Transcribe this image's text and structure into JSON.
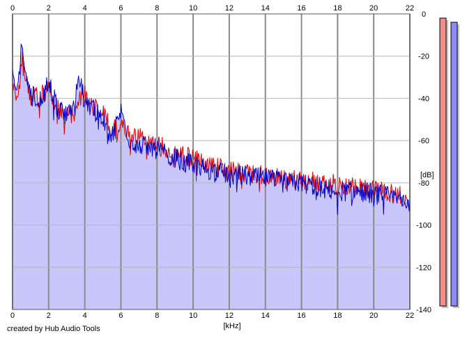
{
  "credit": "created by Hub Audio Tools",
  "chart_data": {
    "type": "area",
    "title": "",
    "xlabel": "[kHz]",
    "ylabel": "[dB]",
    "xlim": [
      0,
      22
    ],
    "ylim": [
      -140,
      0
    ],
    "x_ticks": [
      0,
      2,
      4,
      6,
      8,
      10,
      12,
      14,
      16,
      18,
      20,
      22
    ],
    "y_ticks": [
      0,
      -20,
      -40,
      -60,
      -80,
      -100,
      -120,
      -140
    ],
    "y_tick_labels": [
      "0",
      "-20",
      "-40",
      "-60",
      "-80",
      "-100",
      "-120",
      "-140"
    ],
    "grid": true,
    "fill_color": "#c8c6fa",
    "series": [
      {
        "color": "#e00000",
        "x": [
          0,
          0.3,
          0.55,
          0.7,
          1.0,
          1.5,
          2.0,
          2.5,
          3.0,
          3.5,
          3.95,
          4.4,
          5.0,
          5.5,
          6.0,
          6.5,
          7.0,
          7.5,
          8.0,
          8.5,
          9.0,
          9.5,
          10.0,
          10.5,
          11.0,
          11.5,
          12.0,
          13.0,
          14.0,
          15.0,
          16.0,
          17.0,
          18.0,
          19.0,
          20.0,
          20.5,
          21.0,
          21.5,
          21.85,
          22.0
        ],
        "y": [
          -34,
          -38,
          -19,
          -30,
          -39,
          -40,
          -35,
          -44,
          -47,
          -46,
          -37,
          -43,
          -47,
          -56,
          -52,
          -58,
          -59,
          -60,
          -62,
          -64,
          -65,
          -67,
          -68,
          -70,
          -72,
          -73,
          -75,
          -75,
          -77,
          -78,
          -79,
          -80,
          -81,
          -82,
          -83,
          -83,
          -85,
          -86,
          -90,
          -87
        ]
      },
      {
        "color": "#0000c8",
        "x": [
          0,
          0.3,
          0.5,
          0.7,
          1.0,
          1.5,
          2.0,
          2.5,
          3.0,
          3.5,
          3.6,
          3.95,
          4.4,
          5.0,
          5.5,
          6.0,
          6.5,
          7.0,
          7.5,
          8.0,
          8.5,
          9.0,
          9.5,
          10.0,
          10.5,
          11.0,
          11.5,
          12.0,
          13.0,
          14.0,
          15.0,
          16.0,
          17.0,
          18.0,
          19.0,
          20.0,
          20.5,
          21.0,
          21.5,
          21.85,
          22.0
        ],
        "y": [
          -28,
          -36,
          -14,
          -30,
          -38,
          -42,
          -33,
          -45,
          -48,
          -44,
          -27,
          -40,
          -44,
          -50,
          -58,
          -46,
          -60,
          -62,
          -63,
          -64,
          -67,
          -68,
          -71,
          -71,
          -73,
          -74,
          -75,
          -76,
          -77,
          -78,
          -80,
          -80,
          -82,
          -84,
          -84,
          -85,
          -86,
          -87,
          -88,
          -92,
          -87
        ]
      }
    ]
  },
  "level_meters": [
    {
      "channel": "left",
      "level": 1.0,
      "fill_color": "#f38c8c"
    },
    {
      "channel": "right",
      "level": 1.0,
      "fill_color": "#8c8cf3"
    }
  ]
}
